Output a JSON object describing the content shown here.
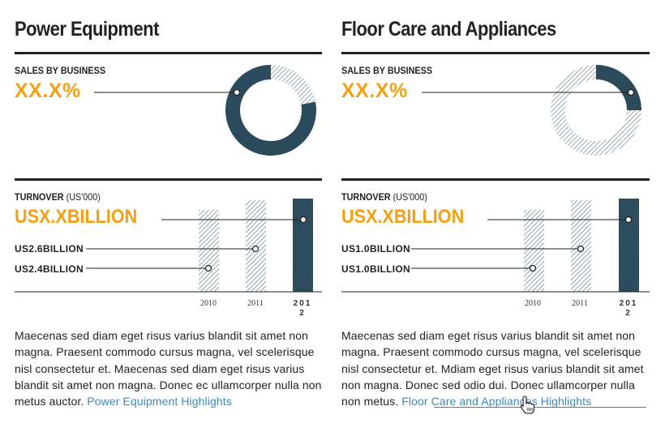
{
  "panels": [
    {
      "title": "Power Equipment",
      "sales_label": "SALES BY BUSINESS",
      "sales_value": "XX.X%",
      "donut_share": 0.22,
      "turnover_label": "TURNOVER",
      "turnover_unit": "(US'000)",
      "turnover_value": "USX.XBILLION",
      "bars": [
        {
          "year": "2010",
          "label": "US2.4BILLION",
          "height": 0.8
        },
        {
          "year": "2011",
          "label": "US2.6BILLION",
          "height": 0.9
        },
        {
          "year": "2012",
          "label": "",
          "height": 0.95
        }
      ],
      "body": "Maecenas sed diam eget risus varius blandit sit amet non magna. Praesent commodo cursus magna, vel scelerisque nisl consectetur et. Maecenas sed diam eget risus varius blandit sit amet non magna. Donec ec ullamcorper nulla non metus auctor.",
      "link": " Power Equipment Highlights"
    },
    {
      "title": "Floor Care and Appliances",
      "sales_label": "SALES BY BUSINESS",
      "sales_value": "XX.X%",
      "donut_share": 0.25,
      "turnover_label": "TURNOVER",
      "turnover_unit": "(US'000)",
      "turnover_value": "USX.XBILLION",
      "bars": [
        {
          "year": "2010",
          "label": "US1.0BILLION",
          "height": 0.8
        },
        {
          "year": "2011",
          "label": "US1.0BILLION",
          "height": 0.9
        },
        {
          "year": "2012",
          "label": "",
          "height": 0.95
        }
      ],
      "body": "Maecenas sed diam eget risus varius blandit sit amet non magna. Praesent commodo cursus magna, vel scelerisque nisl consectetur et. Mdiam eget risus varius blandit sit amet non magna. Donec sed odio dui. Donec ullamcorper nulla non metus.",
      "link": " Floor Care and Appliances Highlights"
    }
  ],
  "colors": {
    "accent": "#f5a012",
    "navy": "#2b4a5c",
    "hatch": "#9aa9b3",
    "link": "#3a8cc1",
    "text": "#222222"
  },
  "icons": {
    "cursor": "hand-pointer-icon"
  }
}
